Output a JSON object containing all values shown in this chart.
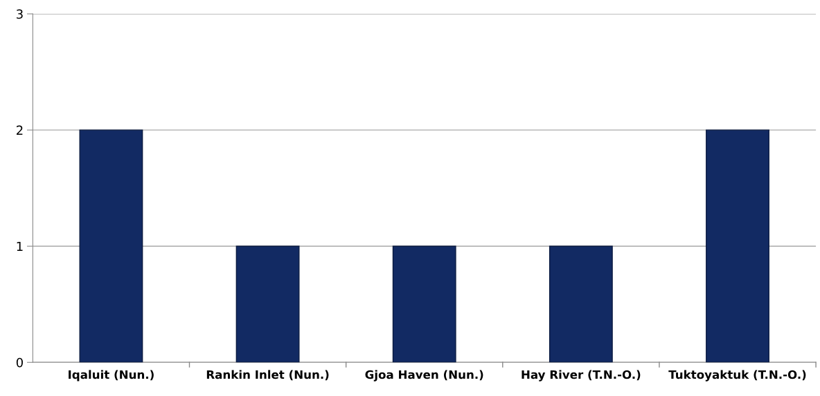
{
  "chart_data": {
    "type": "bar",
    "categories": [
      "Iqaluit (Nun.)",
      "Rankin Inlet (Nun.)",
      "Gjoa Haven (Nun.)",
      "Hay River (T.N.-O.)",
      "Tuktoyaktuk (T.N.-O.)"
    ],
    "values": [
      2,
      1,
      1,
      1,
      2
    ],
    "color": "#122a63",
    "ylim": [
      0,
      3
    ],
    "yticks": [
      0,
      1,
      2,
      3
    ],
    "grid": "y",
    "legend": false
  }
}
